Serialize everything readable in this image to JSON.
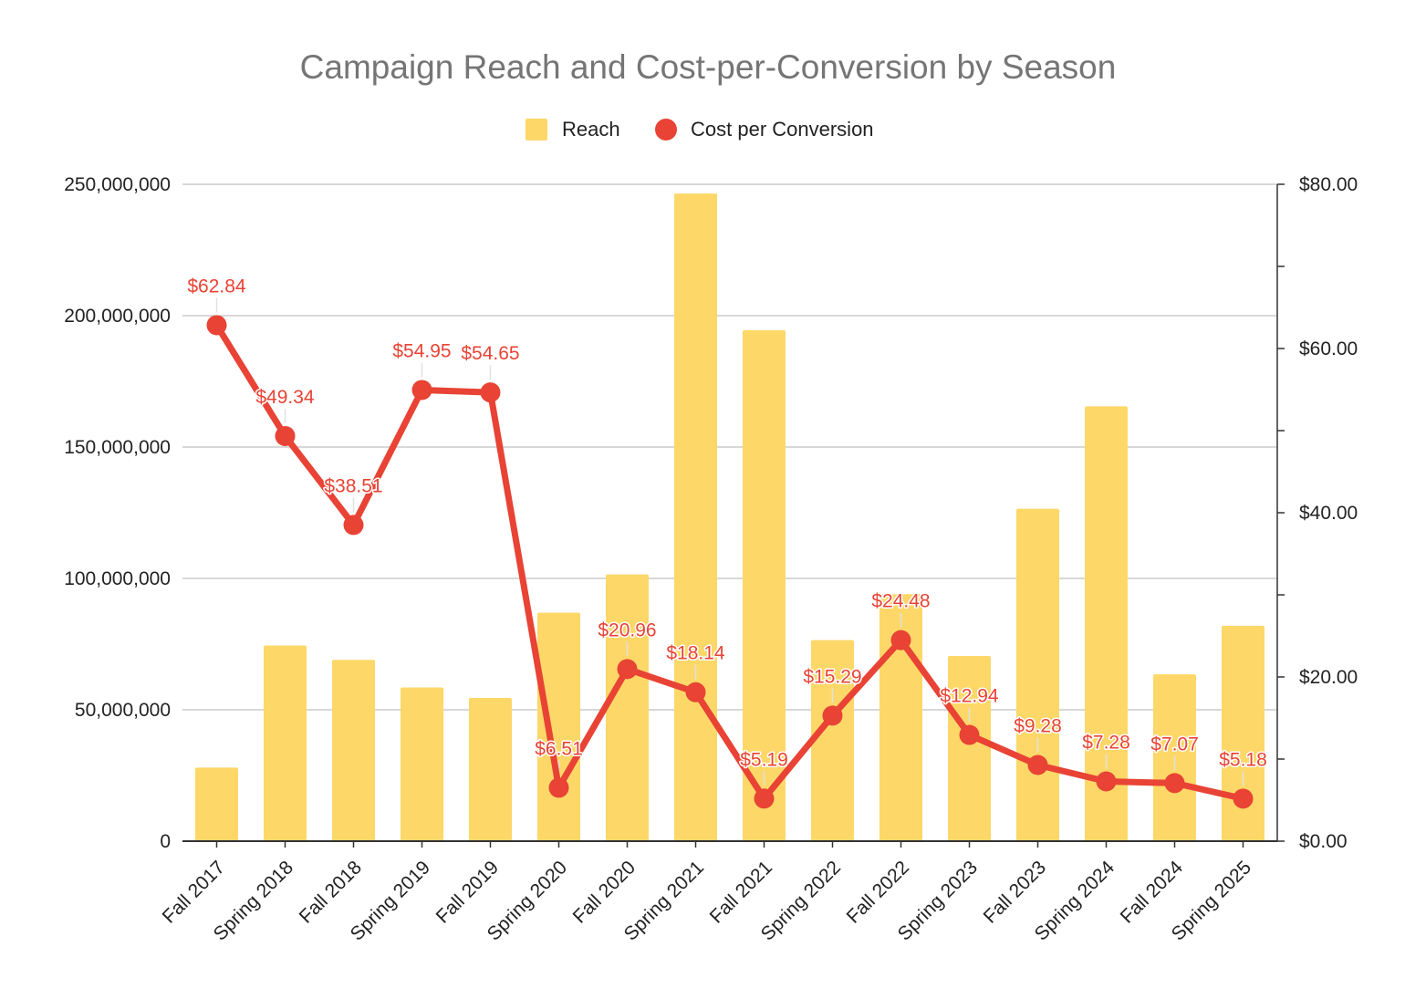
{
  "chart_data": {
    "type": "bar",
    "combo": "bar+line",
    "title": "Campaign Reach and Cost-per-Conversion by Season",
    "categories": [
      "Fall 2017",
      "Spring 2018",
      "Fall 2018",
      "Spring 2019",
      "Fall 2019",
      "Spring 2020",
      "Fall 2020",
      "Spring 2021",
      "Fall 2021",
      "Spring 2022",
      "Fall 2022",
      "Spring 2023",
      "Fall 2023",
      "Spring 2024",
      "Fall 2024",
      "Spring 2025"
    ],
    "series": [
      {
        "name": "Reach",
        "type": "bar",
        "axis": "left",
        "color": "#FDD868",
        "values": [
          28000000,
          74500000,
          69000000,
          58500000,
          54500000,
          87000000,
          101500000,
          246500000,
          194500000,
          76500000,
          94000000,
          70500000,
          126500000,
          165500000,
          63500000,
          82000000
        ]
      },
      {
        "name": "Cost per Conversion",
        "type": "line",
        "axis": "right",
        "color": "#E84335",
        "values": [
          62.84,
          49.34,
          38.51,
          54.95,
          54.65,
          6.51,
          20.96,
          18.14,
          5.19,
          15.29,
          24.48,
          12.94,
          9.28,
          7.28,
          7.07,
          5.18
        ],
        "labels": [
          "$62.84",
          "$49.34",
          "$38.51",
          "$54.95",
          "$54.65",
          "$6.51",
          "$20.96",
          "$18.14",
          "$5.19",
          "$15.29",
          "$24.48",
          "$12.94",
          "$9.28",
          "$7.28",
          "$7.07",
          "$5.18"
        ]
      }
    ],
    "left_axis": {
      "ylim": [
        0,
        250000000
      ],
      "ticks": [
        0,
        50000000,
        100000000,
        150000000,
        200000000,
        250000000
      ],
      "tick_labels": [
        "0",
        "50,000,000",
        "100,000,000",
        "150,000,000",
        "200,000,000",
        "250,000,000"
      ]
    },
    "right_axis": {
      "ylim": [
        0,
        80
      ],
      "ticks": [
        0,
        20,
        40,
        60,
        80
      ],
      "tick_labels": [
        "$0.00",
        "$20.00",
        "$40.00",
        "$60.00",
        "$80.00"
      ],
      "minor_ticks": [
        10,
        30,
        50,
        70
      ]
    },
    "xlabel": "",
    "ylabel": "",
    "grid": true,
    "legend": {
      "position": "top-center",
      "entries": [
        "Reach",
        "Cost per Conversion"
      ]
    }
  },
  "colors": {
    "title": "#757575",
    "text": "#222222",
    "grid": "#CCCCCC",
    "axis": "#333333",
    "bar": "#FDD868",
    "line": "#E84335",
    "label_connector": "#E0E0E0"
  }
}
